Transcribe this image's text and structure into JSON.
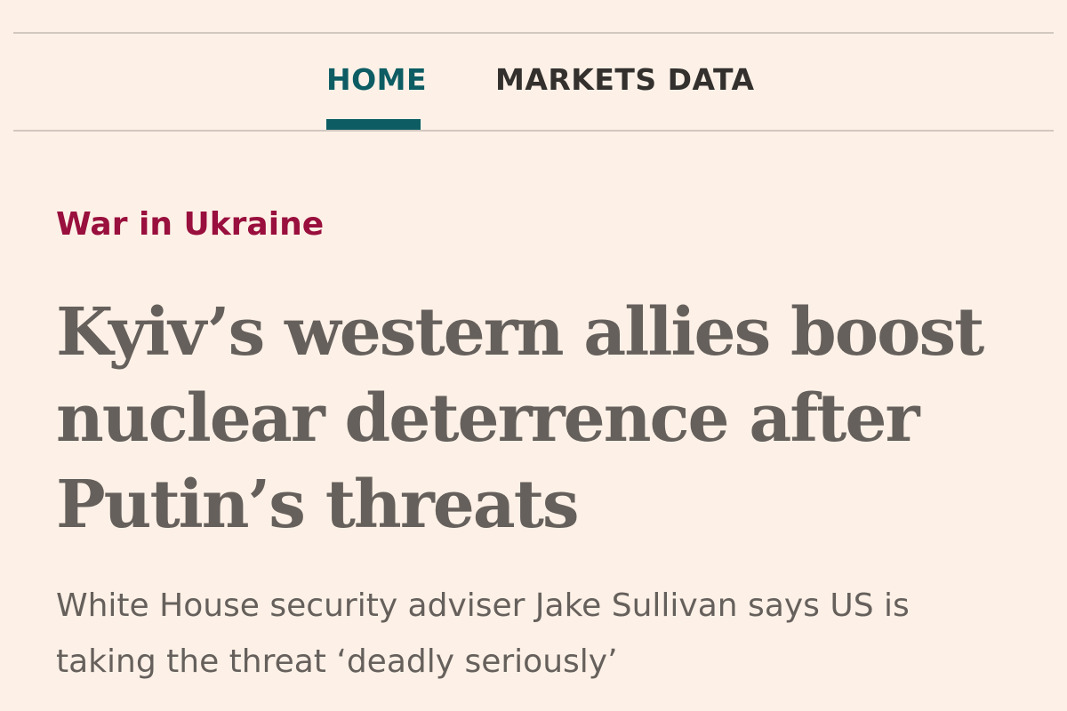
{
  "nav": {
    "items": [
      "HOME",
      "MARKETS DATA"
    ]
  },
  "article": {
    "topic": "War in Ukraine",
    "headline": "Kyiv’s western allies boost nuclear deterrence after Putin’s threats",
    "standfirst": "White House security adviser Jake Sullivan says US is taking the threat ‘deadly seriously’"
  }
}
